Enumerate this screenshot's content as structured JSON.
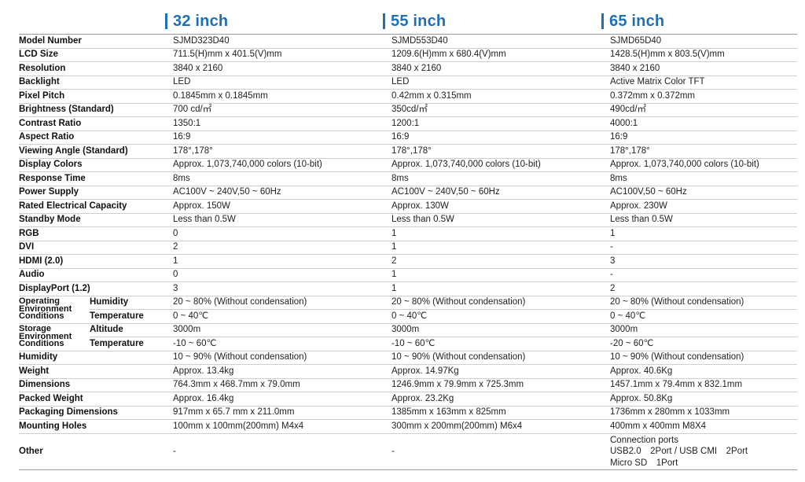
{
  "colors": {
    "accent": "#1f6fb5"
  },
  "columns": [
    {
      "title": "32 inch"
    },
    {
      "title": "55 inch"
    },
    {
      "title": "65 inch"
    }
  ],
  "rows": [
    {
      "label": "Model Number",
      "values": [
        "SJMD323D40",
        "SJMD553D40",
        "SJMD65D40"
      ]
    },
    {
      "label": "LCD Size",
      "values": [
        "711.5(H)mm x 401.5(V)mm",
        "1209.6(H)mm x 680.4(V)mm",
        "1428.5(H)mm x 803.5(V)mm"
      ]
    },
    {
      "label": "Resolution",
      "values": [
        "3840 x 2160",
        "3840 x 2160",
        "3840 x 2160"
      ]
    },
    {
      "label": "Backlight",
      "values": [
        "LED",
        "LED",
        "Active Matrix Color TFT"
      ]
    },
    {
      "label": "Pixel Pitch",
      "values": [
        "0.1845mm x 0.1845mm",
        "0.42mm x 0.315mm",
        "0.372mm x 0.372mm"
      ]
    },
    {
      "label": "Brightness (Standard)",
      "values": [
        "700 cd/㎡",
        "350cd/㎡",
        "490cd/㎡"
      ]
    },
    {
      "label": "Contrast Ratio",
      "values": [
        "1350:1",
        "1200:1",
        "4000:1"
      ]
    },
    {
      "label": "Aspect Ratio",
      "values": [
        "16:9",
        "16:9",
        "16:9"
      ]
    },
    {
      "label": "Viewing Angle (Standard)",
      "values": [
        "178°,178°",
        "178°,178°",
        "178°,178°"
      ]
    },
    {
      "label": "Display Colors",
      "values": [
        "Approx. 1,073,740,000 colors (10-bit)",
        "Approx. 1,073,740,000 colors (10-bit)",
        "Approx. 1,073,740,000 colors (10-bit)"
      ]
    },
    {
      "label": "Response Time",
      "values": [
        "8ms",
        "8ms",
        "8ms"
      ]
    },
    {
      "label": "Power Supply",
      "values": [
        "AC100V ~ 240V,50 ~ 60Hz",
        "AC100V ~ 240V,50 ~ 60Hz",
        "AC100V,50 ~ 60Hz"
      ]
    },
    {
      "label": "Rated Electrical Capacity",
      "values": [
        "Approx. 150W",
        "Approx. 130W",
        "Approx. 230W"
      ]
    },
    {
      "label": "Standby Mode",
      "values": [
        "Less than 0.5W",
        "Less than 0.5W",
        "Less than 0.5W"
      ]
    },
    {
      "label": "RGB",
      "values": [
        "0",
        "1",
        "1"
      ]
    },
    {
      "label": "DVI",
      "values": [
        "2",
        "1",
        "-"
      ]
    },
    {
      "label": "HDMI (2.0)",
      "values": [
        "1",
        "2",
        "3"
      ]
    },
    {
      "label": "Audio",
      "values": [
        "0",
        "1",
        "-"
      ]
    },
    {
      "label": "DisplayPort (1.2)",
      "values": [
        "3",
        "1",
        "2"
      ]
    }
  ],
  "operating": {
    "label": "Operating Environment Conditions",
    "rows": [
      {
        "sub": "Humidity",
        "values": [
          "20 ~ 80% (Without condensation)",
          "20 ~ 80% (Without condensation)",
          "20 ~ 80% (Without condensation)"
        ]
      },
      {
        "sub": "Temperature",
        "values": [
          "0 ~ 40℃",
          "0 ~ 40℃",
          "0 ~ 40℃"
        ]
      }
    ]
  },
  "storage": {
    "label": "Storage Environment Conditions",
    "rows": [
      {
        "sub": "Altitude",
        "values": [
          "3000m",
          "3000m",
          "3000m"
        ]
      },
      {
        "sub": "Temperature",
        "values": [
          "-10 ~ 60℃",
          "-10 ~ 60℃",
          "-20 ~ 60℃"
        ]
      }
    ]
  },
  "rows2": [
    {
      "label": "Humidity",
      "values": [
        "10 ~ 90% (Without condensation)",
        "10 ~ 90% (Without condensation)",
        "10 ~ 90% (Without condensation)"
      ]
    },
    {
      "label": "Weight",
      "values": [
        "Approx. 13.4kg",
        "Approx. 14.97Kg",
        "Approx. 40.6Kg"
      ]
    },
    {
      "label": "Dimensions",
      "values": [
        "764.3mm x 468.7mm x 79.0mm",
        "1246.9mm x 79.9mm x 725.3mm",
        "1457.1mm x 79.4mm x 832.1mm"
      ]
    },
    {
      "label": "Packed Weight",
      "values": [
        "Approx. 16.4kg",
        "Approx. 23.2Kg",
        "Approx. 50.8Kg"
      ]
    },
    {
      "label": "Packaging Dimensions",
      "values": [
        "917mm x 65.7 mm x 211.0mm",
        "1385mm x 163mm x 825mm",
        "1736mm x 280mm x 1033mm"
      ]
    },
    {
      "label": "Mounting Holes",
      "values": [
        "100mm x 100mm(200mm) M4x4",
        "300mm x 200mm(200mm) M6x4",
        "400mm x 400mm M8X4"
      ]
    }
  ],
  "other": {
    "label": "Other",
    "values": [
      "-",
      "-"
    ],
    "lines65": [
      "Connection ports",
      "USB2.0　2Port / USB CMI　2Port",
      "Micro SD　1Port"
    ]
  }
}
